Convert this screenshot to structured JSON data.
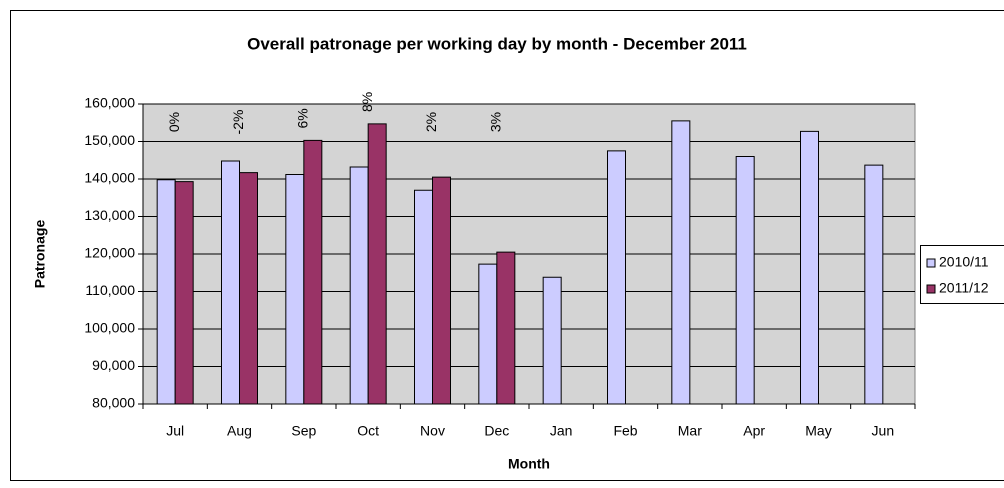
{
  "chart_data": {
    "type": "bar",
    "title": "Overall patronage per working day by month - December 2011",
    "x_label": "Month",
    "y_label": "Patronage",
    "categories": [
      "Jul",
      "Aug",
      "Sep",
      "Oct",
      "Nov",
      "Dec",
      "Jan",
      "Feb",
      "Mar",
      "Apr",
      "May",
      "Jun"
    ],
    "series": [
      {
        "name": "2010/11",
        "color": "#ccccff",
        "values": [
          139800,
          144800,
          141200,
          143200,
          137000,
          117300,
          113800,
          147500,
          155500,
          146000,
          152700,
          143700
        ]
      },
      {
        "name": "2011/12",
        "color": "#993366",
        "values": [
          139300,
          141700,
          150300,
          154700,
          140500,
          120500,
          null,
          null,
          null,
          null,
          null,
          null
        ]
      }
    ],
    "annotations": [
      "0%",
      "-2%",
      "6%",
      "8%",
      "2%",
      "3%"
    ],
    "ylim": [
      80000,
      160000
    ],
    "yticks": [
      {
        "value": 80000,
        "label": "80,000"
      },
      {
        "value": 90000,
        "label": "90,000"
      },
      {
        "value": 100000,
        "label": "100,000"
      },
      {
        "value": 110000,
        "label": "110,000"
      },
      {
        "value": 120000,
        "label": "120,000"
      },
      {
        "value": 130000,
        "label": "130,000"
      },
      {
        "value": 140000,
        "label": "140,000"
      },
      {
        "value": 150000,
        "label": "150,000"
      },
      {
        "value": 160000,
        "label": "160,000"
      }
    ],
    "grid": true,
    "legend": "right",
    "plot_background": "#d4d4d4"
  }
}
